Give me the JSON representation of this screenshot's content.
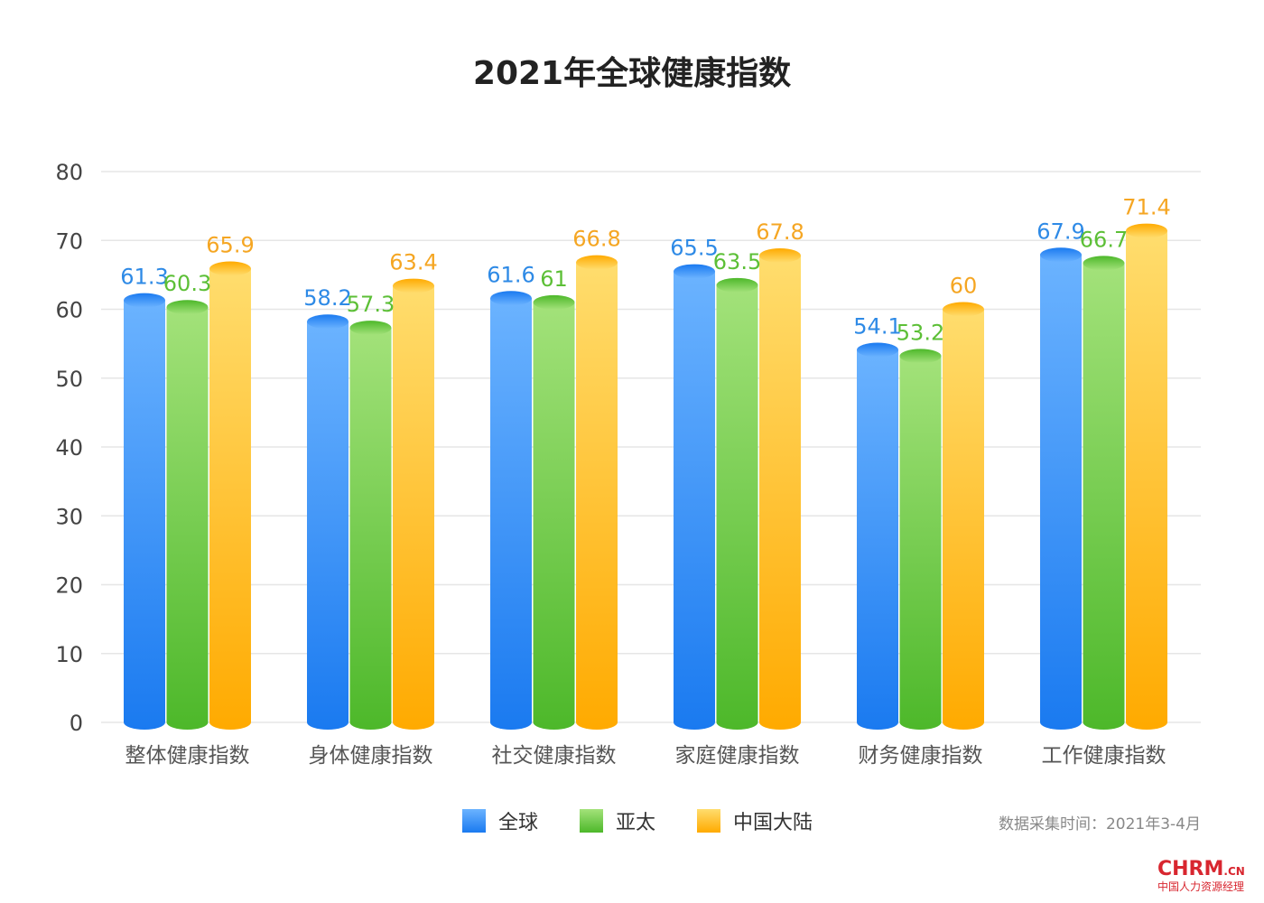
{
  "chart_data": {
    "type": "bar",
    "title": "2021年全球健康指数",
    "categories": [
      "整体健康指数",
      "身体健康指数",
      "社交健康指数",
      "家庭健康指数",
      "财务健康指数",
      "工作健康指数"
    ],
    "series": [
      {
        "name": "全球",
        "values": [
          61.3,
          58.2,
          61.6,
          65.5,
          54.1,
          67.9
        ],
        "color_top": "#6bb3ff",
        "color_bottom": "#1a7af0",
        "label_color": "#2e8ae6"
      },
      {
        "name": "亚太",
        "values": [
          60.3,
          57.3,
          61,
          63.5,
          53.2,
          66.7
        ],
        "color_top": "#a3e27a",
        "color_bottom": "#4db82a",
        "label_color": "#5cbf36"
      },
      {
        "name": "中国大陆",
        "values": [
          65.9,
          63.4,
          66.8,
          67.8,
          60,
          71.4
        ],
        "color_top": "#ffdd6e",
        "color_bottom": "#ffaa00",
        "label_color": "#f5a623"
      }
    ],
    "ylim": [
      0,
      80
    ],
    "yticks": [
      0,
      10,
      20,
      30,
      40,
      50,
      60,
      70,
      80
    ],
    "grid": true,
    "legend_position": "bottom-center"
  },
  "legend": [
    {
      "label": "全球",
      "color": "#2e8ae6"
    },
    {
      "label": "亚太",
      "color": "#5cbf36"
    },
    {
      "label": "中国大陆",
      "color": "#f5a623"
    }
  ],
  "source_note": "数据采集时间：2021年3-4月",
  "logo": {
    "main": "CHRM",
    "suffix": ".CN",
    "sub": "中国人力资源经理"
  }
}
